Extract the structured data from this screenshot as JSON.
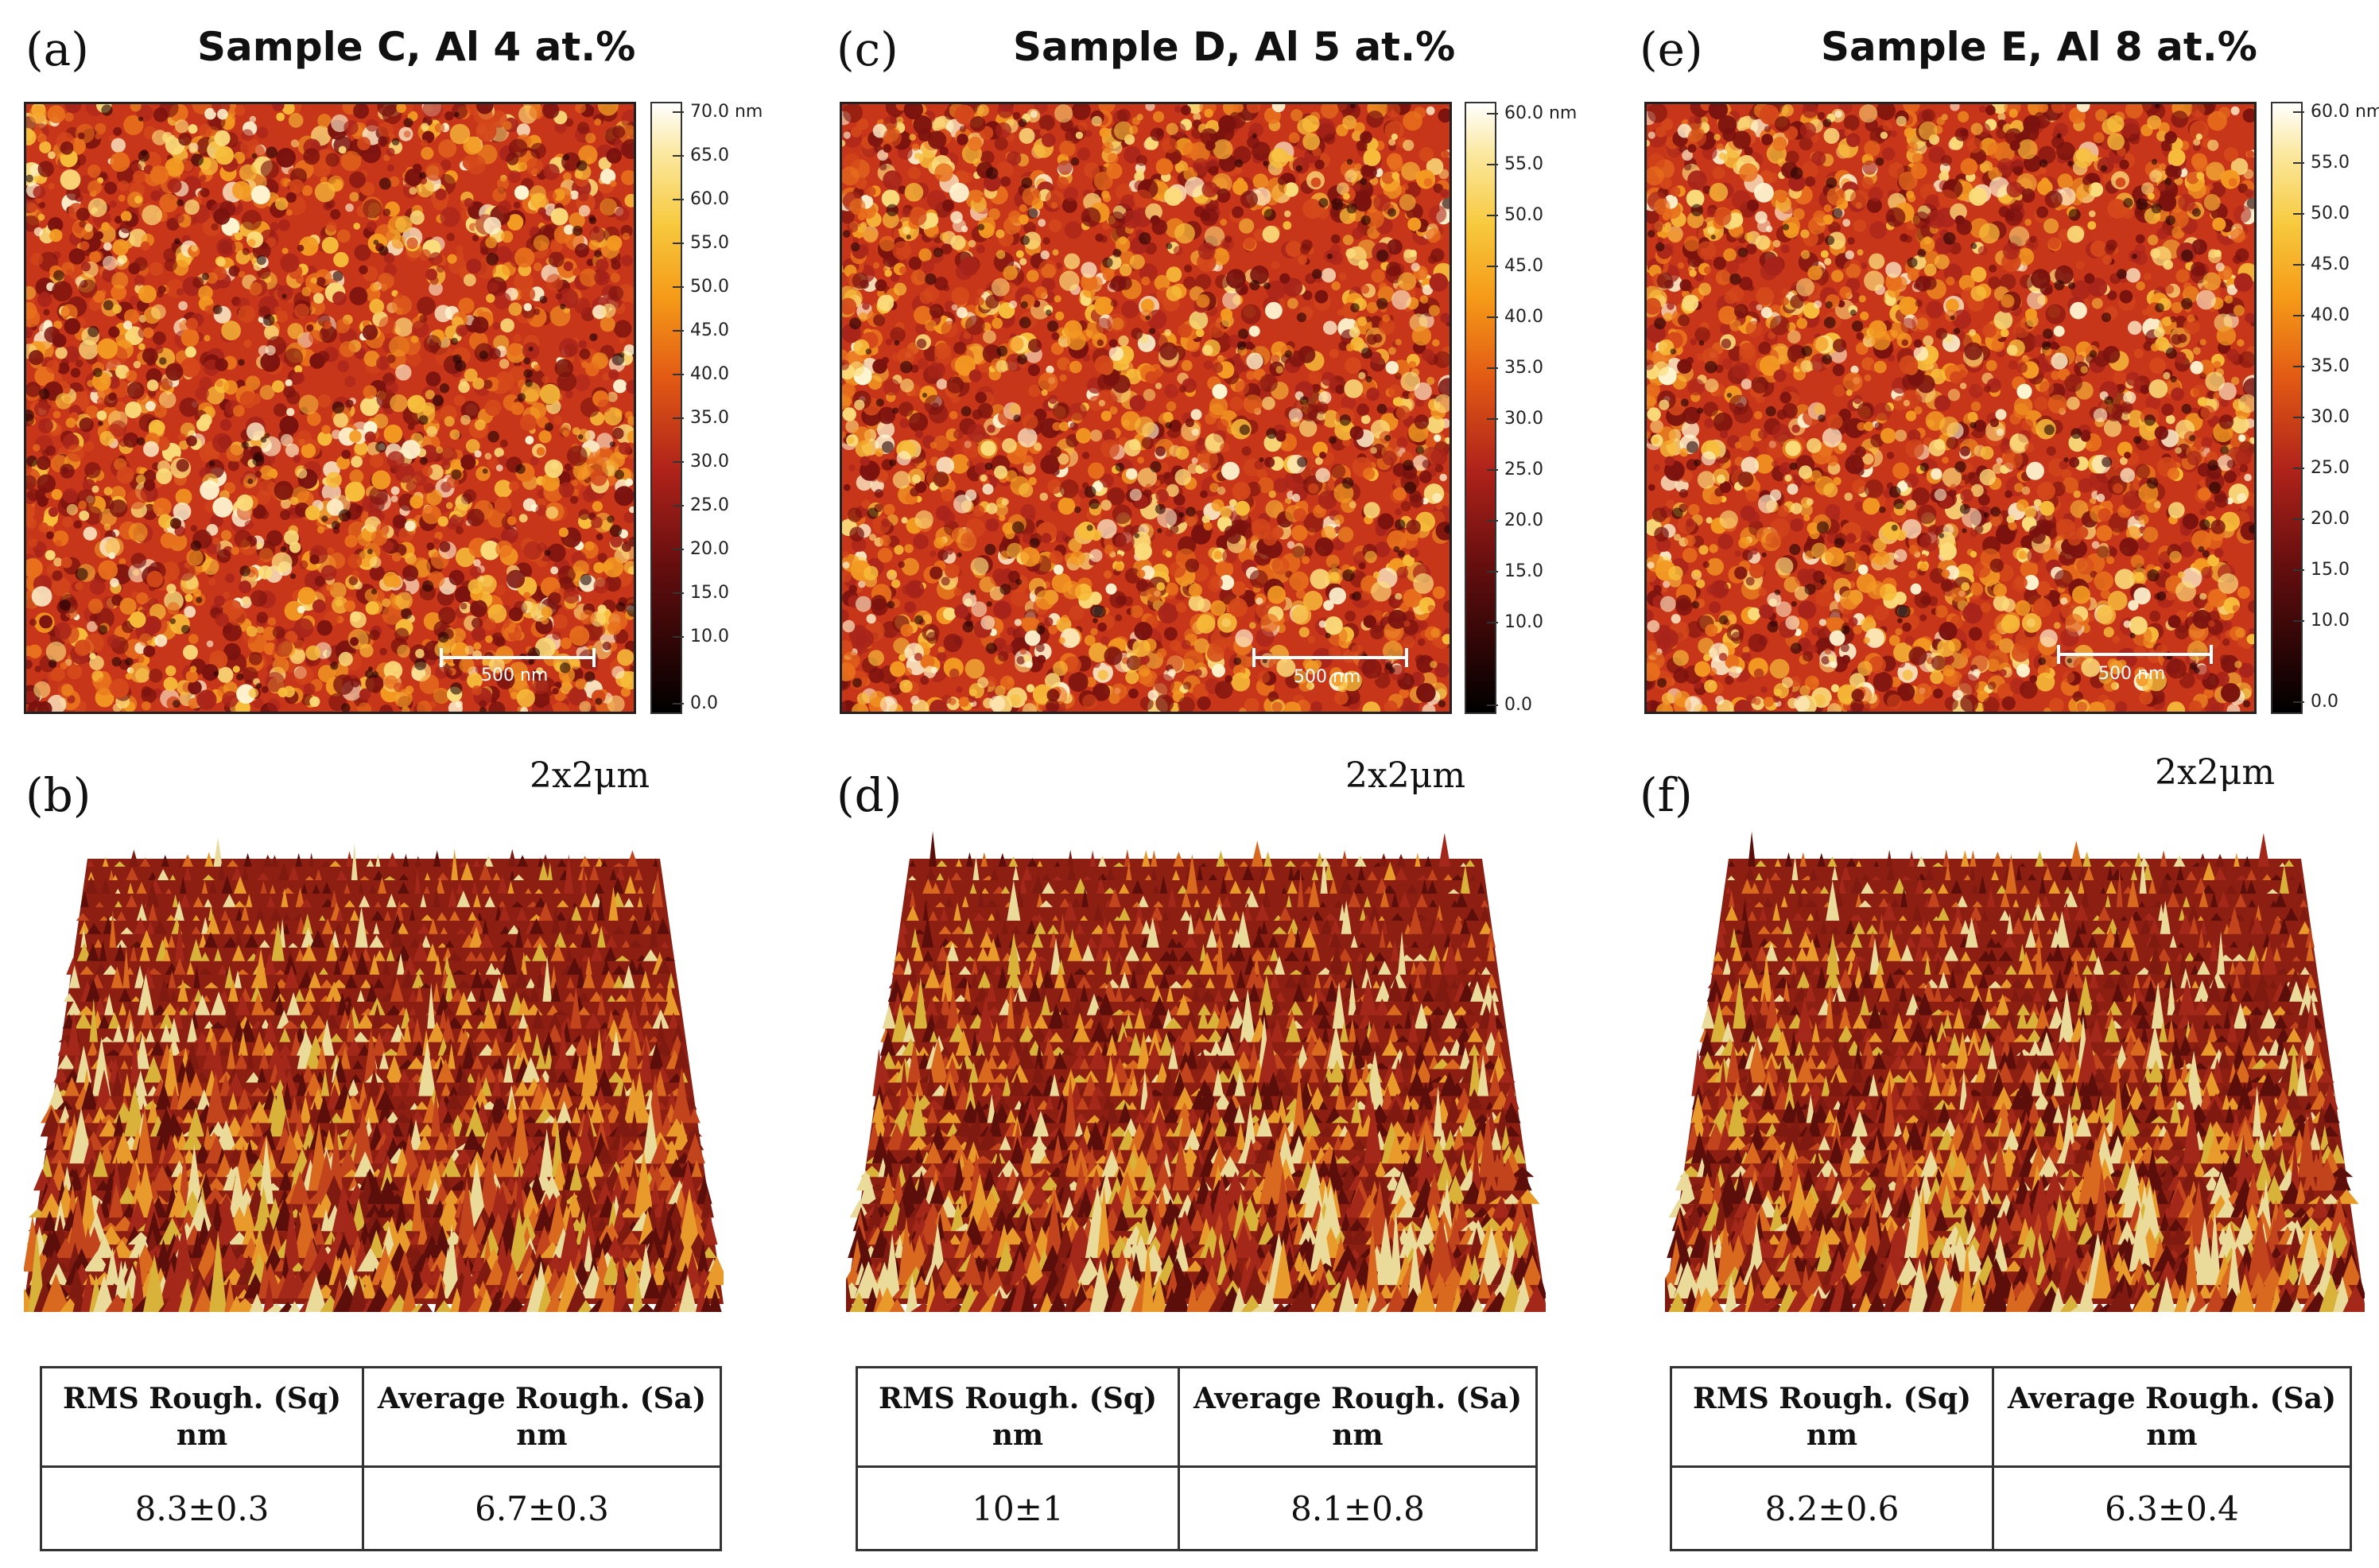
{
  "panels": [
    {
      "top_label": "(a)",
      "title": "Sample C, Al 4 at.%",
      "colorbar_ticks": [
        "70.0 nm",
        "65.0",
        "60.0",
        "55.0",
        "50.0",
        "45.0",
        "40.0",
        "35.0",
        "30.0",
        "25.0",
        "20.0",
        "15.0",
        "10.0",
        "0.0"
      ],
      "scale_label": "500 nm",
      "bottom_label": "(b)",
      "scan_size": "2x2μm",
      "table": {
        "col1_header": "RMS Rough. (Sq)\nnm",
        "col2_header": "Average Rough. (Sa)\nnm",
        "rms": "8.3±0.3",
        "avg": "6.7±0.3"
      }
    },
    {
      "top_label": "(c)",
      "title": "Sample D, Al 5 at.%",
      "colorbar_ticks": [
        "60.0 nm",
        "55.0",
        "50.0",
        "45.0",
        "40.0",
        "35.0",
        "30.0",
        "25.0",
        "20.0",
        "15.0",
        "10.0",
        "0.0"
      ],
      "scale_label": "500 nm",
      "bottom_label": "(d)",
      "scan_size": "2x2μm",
      "table": {
        "col1_header": "RMS Rough. (Sq)\nnm",
        "col2_header": "Average Rough. (Sa)\nnm",
        "rms": "10±1",
        "avg": "8.1±0.8"
      }
    },
    {
      "top_label": "(e)",
      "title": "Sample E, Al 8 at.%",
      "colorbar_ticks": [
        "60.0 nm",
        "55.0",
        "50.0",
        "45.0",
        "40.0",
        "35.0",
        "30.0",
        "25.0",
        "20.0",
        "15.0",
        "10.0",
        "0.0"
      ],
      "scale_label": "500 nm",
      "bottom_label": "(f)",
      "scan_size": "2x2μm",
      "table": {
        "col1_header": "RMS Rough. (Sq)\nnm",
        "col2_header": "Average Rough. (Sa)\nnm",
        "rms": "8.2±0.6",
        "avg": "6.3±0.4"
      }
    }
  ],
  "colors": {
    "afm_base": "#c8361a",
    "afm_bright": "#f6a524",
    "afm_dark": "#5a0a0a",
    "surface_base": "#8c1e12",
    "surface_peak": "#d9b23a"
  }
}
